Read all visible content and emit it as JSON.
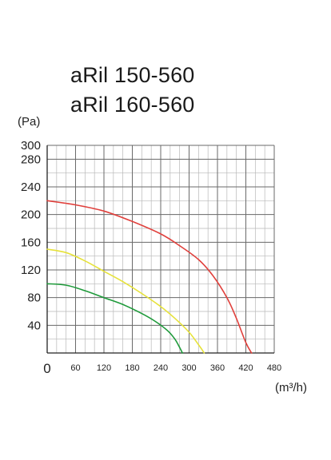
{
  "chart_data": {
    "type": "line",
    "title_lines": [
      "aRil 150-560",
      "aRil 160-560"
    ],
    "ylabel": "(Pa)",
    "xlabel": "(m³/h)",
    "x_ticks": [
      0,
      60,
      120,
      180,
      240,
      300,
      360,
      420,
      480
    ],
    "y_ticks": [
      40,
      80,
      120,
      160,
      200,
      240,
      280,
      300
    ],
    "xlim": [
      0,
      480
    ],
    "ylim": [
      0,
      300
    ],
    "grid": true,
    "series": [
      {
        "color": "#e0403c",
        "x": [
          0,
          60,
          120,
          180,
          240,
          280,
          320,
          350,
          380,
          400,
          420,
          432
        ],
        "y": [
          220,
          214,
          205,
          190,
          172,
          155,
          135,
          112,
          80,
          50,
          15,
          0
        ]
      },
      {
        "color": "#e6e23a",
        "x": [
          0,
          40,
          80,
          120,
          160,
          200,
          240,
          270,
          300,
          320,
          332
        ],
        "y": [
          150,
          145,
          133,
          118,
          103,
          86,
          67,
          50,
          30,
          12,
          0
        ]
      },
      {
        "color": "#1e9a3a",
        "x": [
          0,
          40,
          80,
          120,
          160,
          200,
          230,
          255,
          270,
          280,
          286
        ],
        "y": [
          100,
          98,
          90,
          80,
          70,
          57,
          45,
          32,
          20,
          8,
          0
        ]
      }
    ]
  }
}
